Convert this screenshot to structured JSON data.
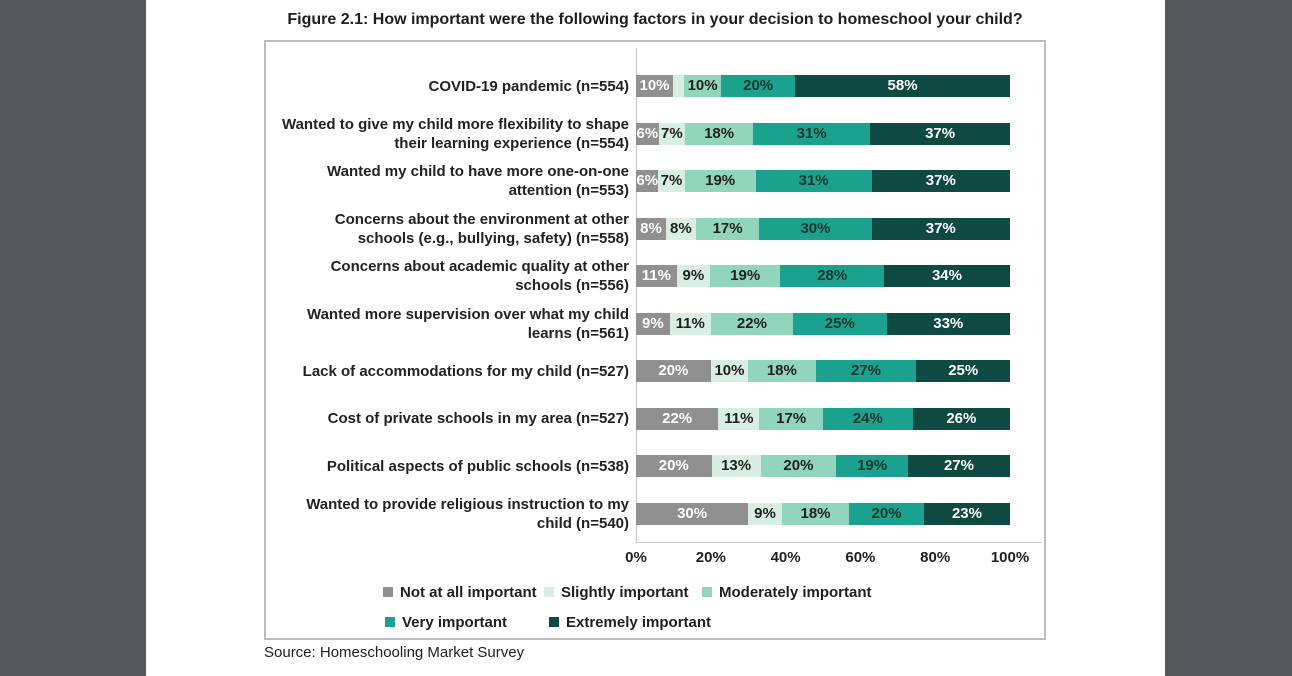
{
  "window": {
    "background_color": "#54565A",
    "page_color": "#FFFFFF"
  },
  "figure": {
    "title": "Figure 2.1: How important were the following factors in your decision to homeschool your child?",
    "source": "Source: Homeschooling Market Survey"
  },
  "chart_data": {
    "type": "bar",
    "variant": "horizontal-stacked-100-percent",
    "title": "Figure 2.1: How important were the following factors in your decision to homeschool your child?",
    "xlabel": "",
    "ylabel": "",
    "xlim": [
      0,
      100
    ],
    "x_ticks": [
      "0%",
      "20%",
      "40%",
      "60%",
      "80%",
      "100%"
    ],
    "grid": false,
    "legend_position": "bottom",
    "value_suffix": "%",
    "hide_label_below": 5,
    "categories": [
      "COVID-19 pandemic (n=554)",
      "Wanted to give my child more flexibility to shape their learning experience (n=554)",
      "Wanted my child to have more one-on-one attention (n=553)",
      "Concerns about the environment at other schools (e.g., bullying, safety) (n=558)",
      "Concerns about academic quality at other schools (n=556)",
      "Wanted more supervision over what my child learns (n=561)",
      "Lack of accommodations for my child (n=527)",
      "Cost of private schools in my area (n=527)",
      "Political aspects of public schools (n=538)",
      "Wanted to provide religious instruction to my child (n=540)"
    ],
    "series": [
      {
        "name": "Not at all important",
        "color": "#909090",
        "label_color": "#FFFFFF",
        "values": [
          10,
          6,
          6,
          8,
          11,
          9,
          20,
          22,
          20,
          30
        ]
      },
      {
        "name": "Slightly important",
        "color": "#D8EEE2",
        "label_color": "#1F1F1F",
        "values": [
          3,
          7,
          7,
          8,
          9,
          11,
          10,
          11,
          13,
          9
        ]
      },
      {
        "name": "Moderately important",
        "color": "#92D5BD",
        "label_color": "#1F1F1F",
        "values": [
          10,
          18,
          19,
          17,
          19,
          22,
          18,
          17,
          20,
          18
        ]
      },
      {
        "name": "Very important",
        "color": "#1BA28E",
        "label_color": "#16352E",
        "values": [
          20,
          31,
          31,
          30,
          28,
          25,
          27,
          24,
          19,
          20
        ]
      },
      {
        "name": "Extremely important",
        "color": "#0E4A41",
        "label_color": "#FFFFFF",
        "values": [
          58,
          37,
          37,
          37,
          34,
          33,
          25,
          26,
          27,
          23
        ]
      }
    ]
  }
}
